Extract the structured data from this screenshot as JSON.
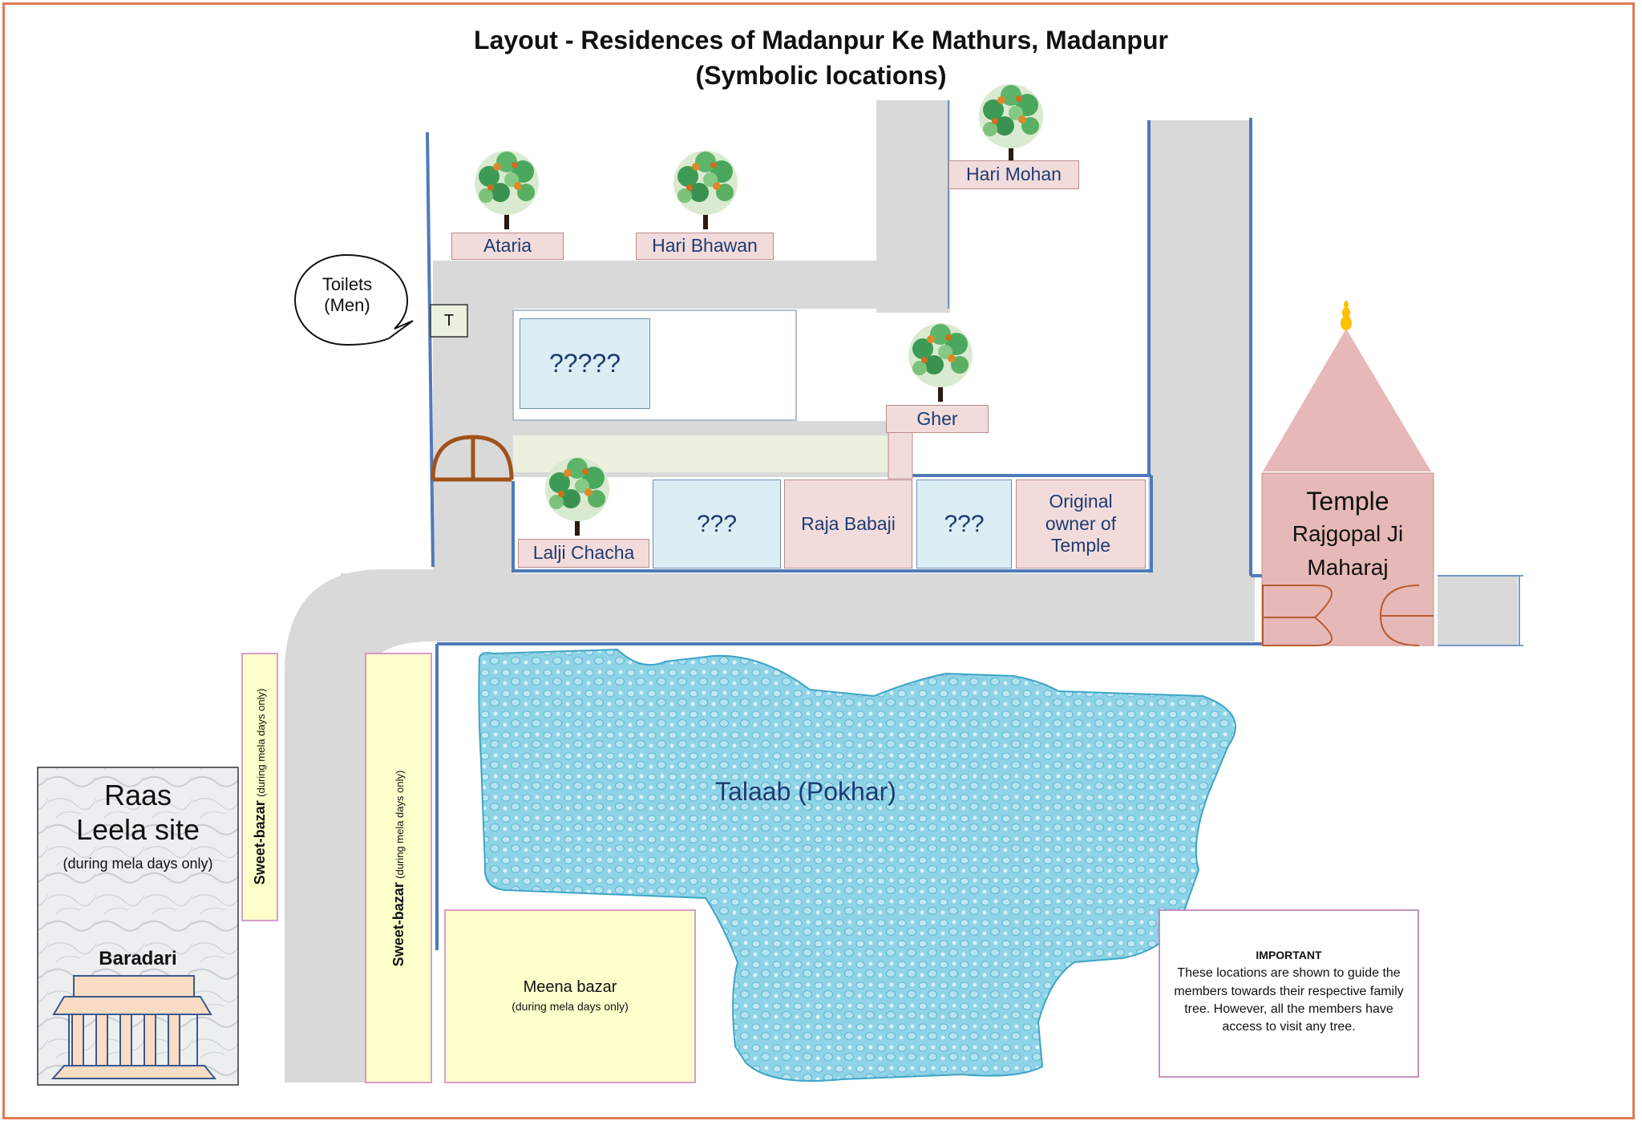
{
  "title": {
    "line1": "Layout -  Residences of Madanpur Ke Mathurs, Madanpur",
    "line2": "(Symbolic locations)"
  },
  "places": {
    "ataria": "Ataria",
    "hari_bhawan": "Hari Bhawan",
    "hari_mohan": "Hari Mohan",
    "gher": "Gher",
    "unknown_five": "?????",
    "lalji_chacha": "Lalji Chacha",
    "unknown_three_a": "???",
    "raja_babaji": "Raja Babaji",
    "unknown_three_b": "???",
    "original_owner": "Original owner of Temple"
  },
  "toilets": {
    "bubble": "Toilets (Men)",
    "marker": "T"
  },
  "temple": {
    "line1": "Temple",
    "line2": "Rajgopal Ji",
    "line3": "Maharaj"
  },
  "pond": "Talaab (Pokhar)",
  "raas_leela": {
    "name": "Raas Leela site",
    "note": "(during mela days only)",
    "building": "Baradari"
  },
  "sweet_bazar": {
    "name": "Sweet-bazar",
    "note": "(during mela days only)"
  },
  "meena_bazar": {
    "name": "Meena bazar",
    "note": "(during mela days only)"
  },
  "important": {
    "heading": "IMPORTANT",
    "body": "These locations are shown to guide the members towards their respective family tree. However, all the members have access to visit any tree."
  }
}
